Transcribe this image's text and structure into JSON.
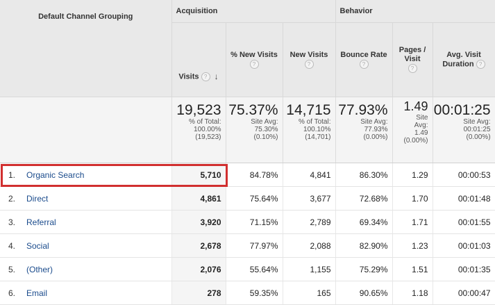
{
  "header": {
    "dimension": "Default Channel Grouping",
    "groups": {
      "acquisition": "Acquisition",
      "behavior": "Behavior"
    },
    "help_glyph": "?",
    "sort_glyph": "↓",
    "columns": {
      "visits": "Visits",
      "new_visits_pct": "% New Visits",
      "new_visits": "New Visits",
      "bounce_rate": "Bounce Rate",
      "pages_visit_1": "Pages /",
      "pages_visit_2": "Visit",
      "avg_duration_1": "Avg. Visit",
      "avg_duration_2": "Duration"
    }
  },
  "totals": {
    "visits": {
      "value": "19,523",
      "l1": "% of Total:",
      "l2": "100.00%",
      "l3": "(19,523)"
    },
    "new_visits_pct": {
      "value": "75.37%",
      "l1": "Site Avg:",
      "l2": "75.30%",
      "l3": "(0.10%)"
    },
    "new_visits": {
      "value": "14,715",
      "l1": "% of Total:",
      "l2": "100.10%",
      "l3": "(14,701)"
    },
    "bounce_rate": {
      "value": "77.93%",
      "l1": "Site Avg:",
      "l2": "77.93%",
      "l3": "(0.00%)"
    },
    "pages_visit": {
      "value": "1.49",
      "l1": "Site",
      "l2": "Avg:",
      "l3": "1.49",
      "l4": "(0.00%)"
    },
    "avg_duration": {
      "value": "00:01:25",
      "l1": "Site Avg:",
      "l2": "00:01:25",
      "l3": "(0.00%)"
    }
  },
  "rows": [
    {
      "idx": "1.",
      "name": "Organic Search",
      "visits": "5,710",
      "new_pct": "84.78%",
      "new": "4,841",
      "bounce": "86.30%",
      "pages": "1.29",
      "duration": "00:00:53"
    },
    {
      "idx": "2.",
      "name": "Direct",
      "visits": "4,861",
      "new_pct": "75.64%",
      "new": "3,677",
      "bounce": "72.68%",
      "pages": "1.70",
      "duration": "00:01:48"
    },
    {
      "idx": "3.",
      "name": "Referral",
      "visits": "3,920",
      "new_pct": "71.15%",
      "new": "2,789",
      "bounce": "69.34%",
      "pages": "1.71",
      "duration": "00:01:55"
    },
    {
      "idx": "4.",
      "name": "Social",
      "visits": "2,678",
      "new_pct": "77.97%",
      "new": "2,088",
      "bounce": "82.90%",
      "pages": "1.23",
      "duration": "00:01:03"
    },
    {
      "idx": "5.",
      "name": "(Other)",
      "visits": "2,076",
      "new_pct": "55.64%",
      "new": "1,155",
      "bounce": "75.29%",
      "pages": "1.51",
      "duration": "00:01:35"
    },
    {
      "idx": "6.",
      "name": "Email",
      "visits": "278",
      "new_pct": "59.35%",
      "new": "165",
      "bounce": "90.65%",
      "pages": "1.18",
      "duration": "00:00:47"
    }
  ],
  "colors": {
    "highlight": "#d12f2f",
    "link": "#1a4b8c"
  }
}
